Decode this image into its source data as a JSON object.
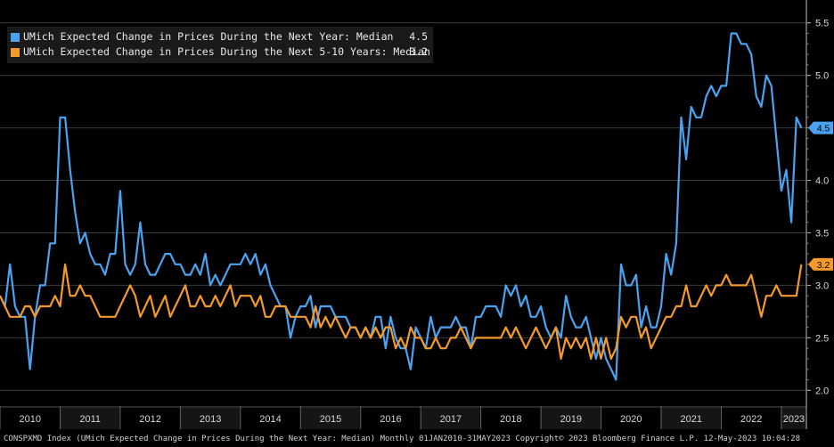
{
  "chart_data": {
    "type": "line",
    "x_start": "2010-01",
    "x_end": "2023-05",
    "x_interval": "monthly",
    "ylim": [
      1.85,
      5.65
    ],
    "yticks": [
      "2.0",
      "2.5",
      "3.0",
      "3.5",
      "4.0",
      "4.5",
      "5.0",
      "5.5"
    ],
    "xticks": [
      "2010",
      "2011",
      "2012",
      "2013",
      "2014",
      "2015",
      "2016",
      "2017",
      "2018",
      "2019",
      "2020",
      "2021",
      "2022",
      "2023"
    ],
    "grid": true,
    "legend_position": "top-left",
    "series": [
      {
        "name": "UMich Expected Change in Prices During the Next Year: Median",
        "last_label": "4.5",
        "color": "#4aa3f0",
        "values": [
          2.9,
          2.8,
          3.2,
          2.8,
          2.7,
          2.7,
          2.2,
          2.7,
          3.0,
          3.0,
          3.4,
          3.4,
          4.6,
          4.6,
          4.1,
          3.7,
          3.4,
          3.5,
          3.3,
          3.2,
          3.2,
          3.1,
          3.3,
          3.3,
          3.9,
          3.2,
          3.1,
          3.2,
          3.6,
          3.2,
          3.1,
          3.1,
          3.2,
          3.3,
          3.3,
          3.2,
          3.2,
          3.1,
          3.1,
          3.2,
          3.1,
          3.3,
          3.0,
          3.1,
          3.0,
          3.1,
          3.2,
          3.2,
          3.2,
          3.3,
          3.2,
          3.3,
          3.1,
          3.2,
          3.0,
          2.9,
          2.8,
          2.8,
          2.5,
          2.7,
          2.8,
          2.8,
          2.9,
          2.6,
          2.8,
          2.8,
          2.8,
          2.7,
          2.7,
          2.7,
          2.6,
          2.6,
          2.5,
          2.6,
          2.5,
          2.7,
          2.7,
          2.4,
          2.7,
          2.5,
          2.4,
          2.4,
          2.2,
          2.6,
          2.5,
          2.4,
          2.7,
          2.5,
          2.6,
          2.6,
          2.6,
          2.7,
          2.6,
          2.6,
          2.4,
          2.7,
          2.7,
          2.8,
          2.8,
          2.8,
          2.7,
          3.0,
          2.9,
          3.0,
          2.8,
          2.9,
          2.7,
          2.7,
          2.8,
          2.6,
          2.5,
          2.6,
          2.5,
          2.9,
          2.7,
          2.6,
          2.6,
          2.7,
          2.5,
          2.3,
          2.5,
          2.3,
          2.2,
          2.1,
          3.2,
          3.0,
          3.0,
          3.1,
          2.6,
          2.8,
          2.6,
          2.6,
          2.8,
          3.3,
          3.1,
          3.4,
          4.6,
          4.2,
          4.7,
          4.6,
          4.6,
          4.8,
          4.9,
          4.8,
          4.9,
          4.9,
          5.4,
          5.4,
          5.3,
          5.3,
          5.2,
          4.8,
          4.7,
          5.0,
          4.9,
          4.4,
          3.9,
          4.1,
          3.6,
          4.6,
          4.5
        ]
      },
      {
        "name": "UMich Expected Change in Prices During the Next 5-10 Years: Median",
        "last_label": "3.2",
        "color": "#f39a2a",
        "values": [
          2.9,
          2.8,
          2.7,
          2.7,
          2.7,
          2.8,
          2.8,
          2.7,
          2.8,
          2.8,
          2.8,
          2.9,
          2.8,
          3.2,
          2.9,
          2.9,
          3.0,
          2.9,
          2.9,
          2.8,
          2.7,
          2.7,
          2.7,
          2.7,
          2.8,
          2.9,
          3.0,
          2.9,
          2.7,
          2.8,
          2.9,
          2.7,
          2.8,
          2.9,
          2.7,
          2.8,
          2.9,
          3.0,
          2.8,
          2.8,
          2.9,
          2.8,
          2.8,
          2.9,
          2.8,
          2.9,
          3.0,
          2.8,
          2.9,
          2.9,
          2.9,
          2.8,
          2.9,
          2.7,
          2.7,
          2.8,
          2.8,
          2.8,
          2.7,
          2.7,
          2.7,
          2.7,
          2.6,
          2.8,
          2.6,
          2.7,
          2.6,
          2.7,
          2.6,
          2.5,
          2.6,
          2.6,
          2.5,
          2.6,
          2.5,
          2.6,
          2.5,
          2.6,
          2.6,
          2.4,
          2.5,
          2.4,
          2.6,
          2.5,
          2.5,
          2.4,
          2.4,
          2.5,
          2.4,
          2.4,
          2.5,
          2.5,
          2.6,
          2.5,
          2.4,
          2.5,
          2.5,
          2.5,
          2.5,
          2.5,
          2.5,
          2.6,
          2.5,
          2.6,
          2.5,
          2.4,
          2.5,
          2.6,
          2.5,
          2.4,
          2.5,
          2.6,
          2.3,
          2.5,
          2.4,
          2.5,
          2.4,
          2.5,
          2.3,
          2.5,
          2.3,
          2.5,
          2.3,
          2.4,
          2.7,
          2.6,
          2.7,
          2.7,
          2.5,
          2.6,
          2.4,
          2.5,
          2.6,
          2.7,
          2.7,
          2.8,
          2.8,
          3.0,
          2.8,
          2.8,
          2.9,
          3.0,
          2.9,
          3.0,
          3.0,
          3.1,
          3.0,
          3.0,
          3.0,
          3.0,
          3.1,
          2.9,
          2.7,
          2.9,
          2.9,
          3.0,
          2.9,
          2.9,
          2.9,
          2.9,
          3.2
        ]
      }
    ]
  },
  "footer": "CONSPXMD Index (UMich Expected Change in Prices During the Next Year: Median)  Monthly 01JAN2010-31MAY2023 Copyright© 2023 Bloomberg Finance L.P. 12-May-2023 10:04:28"
}
